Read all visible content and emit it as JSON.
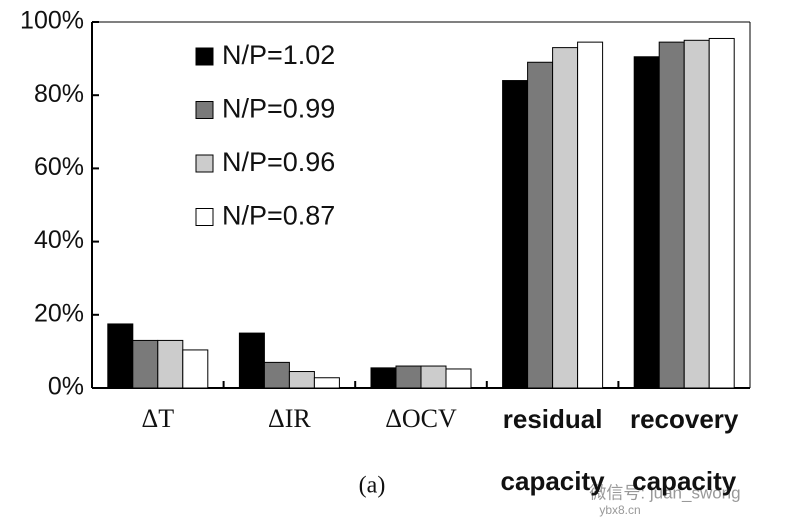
{
  "chart_data": {
    "type": "bar",
    "categories": [
      "ΔT",
      "ΔIR",
      "ΔOCV",
      "residual capacity",
      "recovery capacity"
    ],
    "series": [
      {
        "name": "N/P=1.02",
        "color": "#000000",
        "values": [
          17.5,
          15,
          5.5,
          84,
          90.5
        ]
      },
      {
        "name": "N/P=0.99",
        "color": "#7a7a7a",
        "values": [
          13,
          7,
          6,
          89,
          94.5
        ]
      },
      {
        "name": "N/P=0.96",
        "color": "#cccccc",
        "values": [
          13,
          4.5,
          6,
          93,
          95
        ]
      },
      {
        "name": "N/P=0.87",
        "color": "#ffffff",
        "values": [
          10.4,
          2.8,
          5.2,
          94.5,
          95.5
        ]
      }
    ],
    "ylim": [
      0,
      100
    ],
    "yticks": [
      {
        "value": 0,
        "label": "0%"
      },
      {
        "value": 20,
        "label": "20%"
      },
      {
        "value": 40,
        "label": "40%"
      },
      {
        "value": 60,
        "label": "60%"
      },
      {
        "value": 80,
        "label": "80%"
      },
      {
        "value": 100,
        "label": "100%"
      }
    ],
    "caption": "(a)",
    "watermark": "微信号: juan_swong",
    "watermark_site": "ybx8.cn",
    "legend": "upper-left"
  }
}
